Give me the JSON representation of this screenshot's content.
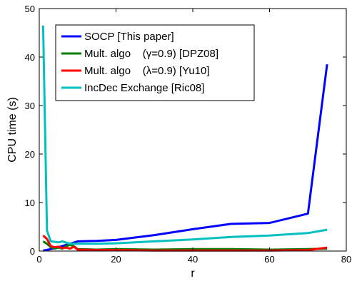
{
  "chart_data": {
    "type": "line",
    "xlabel": "r",
    "ylabel": "CPU time (s)",
    "xlim": [
      0,
      80
    ],
    "ylim": [
      0,
      50
    ],
    "xticks": [
      "0",
      "20",
      "40",
      "60",
      "80"
    ],
    "yticks": [
      "0",
      "10",
      "20",
      "30",
      "40",
      "50"
    ],
    "grid": false,
    "legend_position": "top-left",
    "series": [
      {
        "name": "SOCP [This paper]",
        "color": "#0000ff",
        "x": [
          1,
          3,
          5,
          8,
          10,
          15,
          20,
          30,
          40,
          50,
          60,
          70,
          75
        ],
        "y": [
          0.1,
          0.4,
          0.8,
          1.5,
          2.0,
          2.1,
          2.3,
          3.3,
          4.5,
          5.6,
          5.8,
          7.7,
          38.5
        ]
      },
      {
        "name": "Mult. algo    (γ=0.9) [DPZ08]",
        "color": "#008000",
        "x": [
          1,
          2,
          3,
          4,
          5,
          6,
          7,
          8,
          9,
          10,
          15,
          20,
          30,
          40,
          50,
          60,
          70,
          75
        ],
        "y": [
          2.0,
          1.5,
          0.8,
          0.5,
          0.7,
          0.5,
          1.0,
          1.3,
          1.0,
          0.4,
          0.3,
          0.4,
          0.3,
          0.4,
          0.4,
          0.3,
          0.4,
          0.5
        ]
      },
      {
        "name": "Mult. algo    (λ=0.9) [Yu10]",
        "color": "#ff0000",
        "x": [
          1,
          2,
          3,
          4,
          5,
          6,
          7,
          8,
          9,
          10,
          15,
          20,
          30,
          40,
          50,
          60,
          70,
          75
        ],
        "y": [
          3.2,
          2.5,
          1.0,
          0.8,
          0.9,
          0.6,
          0.7,
          0.5,
          0.9,
          0.3,
          0.2,
          0.2,
          0.1,
          0.1,
          0.1,
          0.1,
          0.2,
          0.7
        ]
      },
      {
        "name": "IncDec Exchange [Ric08]",
        "color": "#00c0c0",
        "x": [
          1,
          2,
          3,
          5,
          6,
          8,
          10,
          15,
          20,
          30,
          40,
          50,
          60,
          70,
          75
        ],
        "y": [
          46.5,
          4.2,
          2.0,
          1.8,
          2.0,
          1.5,
          1.5,
          1.5,
          1.6,
          2.0,
          2.4,
          2.9,
          3.2,
          3.7,
          4.4
        ]
      }
    ]
  }
}
